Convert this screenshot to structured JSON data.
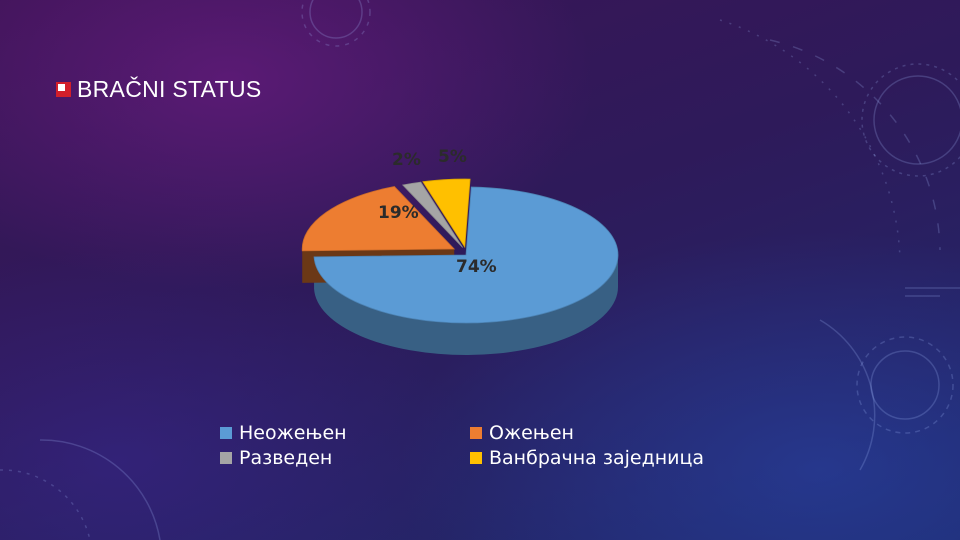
{
  "slide": {
    "title": "BRAČNI STATUS"
  },
  "chart_data": {
    "type": "pie",
    "title": "",
    "slices": [
      {
        "label": "Неожењен",
        "value": 74,
        "color": "#5b9bd5"
      },
      {
        "label": "Ожењен",
        "value": 19,
        "color": "#ed7d31"
      },
      {
        "label": "Разведен",
        "value": 2,
        "color": "#a5a5a5"
      },
      {
        "label": "Ванбрачна заједница",
        "value": 5,
        "color": "#ffc000"
      }
    ],
    "data_labels": [
      "74%",
      "19%",
      "2%",
      "5%"
    ],
    "legend_position": "bottom",
    "legend": [
      "Неожењен",
      "Ожењен",
      "Разведен",
      "Ванбрачна заједница"
    ]
  }
}
